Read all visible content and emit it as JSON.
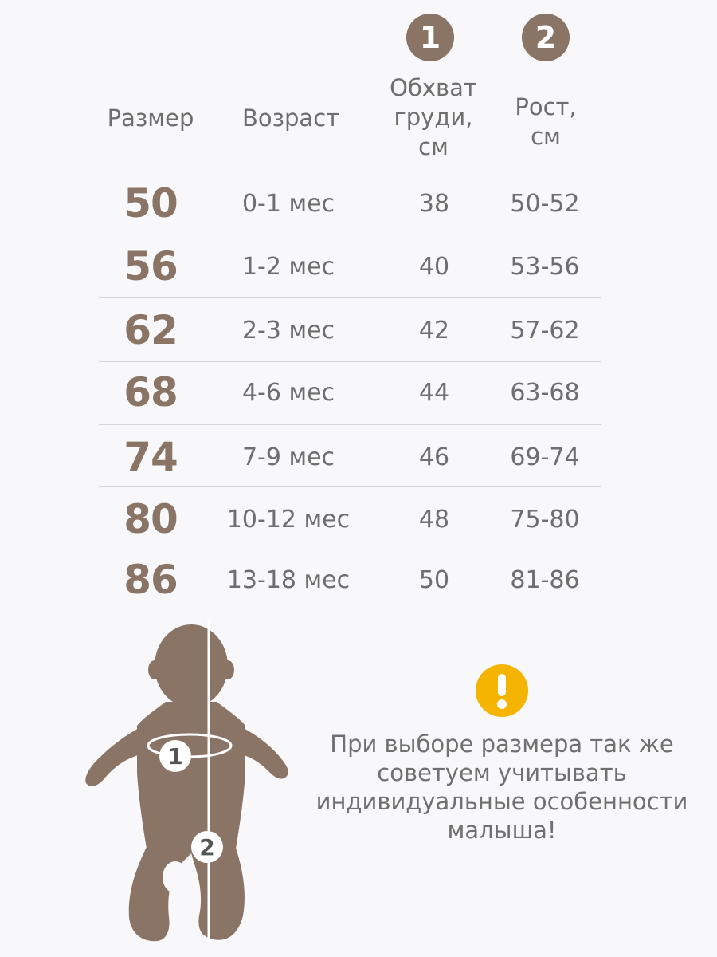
{
  "markers": {
    "chest": "1",
    "height": "2"
  },
  "headers": {
    "size": "Размер",
    "age": "Возраст",
    "chest": "Обхват\nгруди,\nсм",
    "height": "Рост,\nсм"
  },
  "rows": [
    {
      "size": "50",
      "age": "0-1 мес",
      "chest": "38",
      "height": "50-52"
    },
    {
      "size": "56",
      "age": "1-2 мес",
      "chest": "40",
      "height": "53-56"
    },
    {
      "size": "62",
      "age": "2-3 мес",
      "chest": "42",
      "height": "57-62"
    },
    {
      "size": "68",
      "age": "4-6 мес",
      "chest": "44",
      "height": "63-68"
    },
    {
      "size": "74",
      "age": "7-9 мес",
      "chest": "46",
      "height": "69-74"
    },
    {
      "size": "80",
      "age": "10-12 мес",
      "chest": "48",
      "height": "75-80"
    },
    {
      "size": "86",
      "age": "13-18 мес",
      "chest": "50",
      "height": "81-86"
    }
  ],
  "figure_markers": {
    "chest": "1",
    "height": "2"
  },
  "note": "При выборе размера так же\nсоветуем учитывать\nиндивидуальные особенности\nмалыша!",
  "warning_icon": "exclamation-icon",
  "colors": {
    "accent": "#8a7466",
    "warning": "#f5b400",
    "text": "#6e6e6e",
    "background": "#f8f8fa"
  }
}
